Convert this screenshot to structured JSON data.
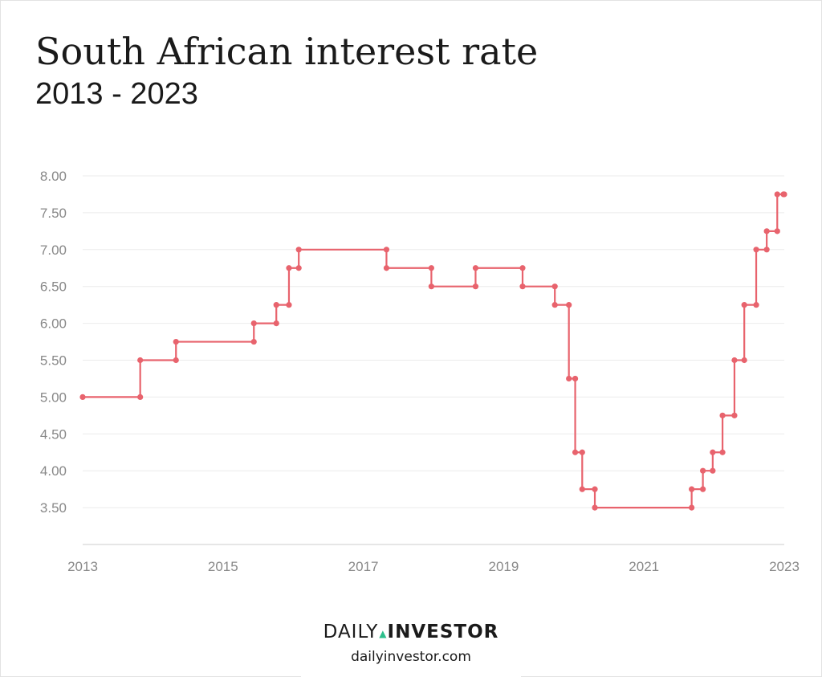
{
  "header": {
    "title": "South African interest rate",
    "subtitle": "2013 - 2023"
  },
  "footer": {
    "brand_part1": "DAILY",
    "brand_separator": "▲",
    "brand_part2": "INVESTOR",
    "website": "dailyinvestor.com",
    "accent_color": "#2dbf8c"
  },
  "chart_data": {
    "type": "line",
    "step": "after",
    "title": "South African interest rate",
    "subtitle": "2013 - 2023",
    "xlabel": "",
    "ylabel": "",
    "xlim": [
      2013,
      2023
    ],
    "ylim": [
      3.0,
      8.0
    ],
    "x_ticks": [
      "2013",
      "2015",
      "2017",
      "2019",
      "2021",
      "2023"
    ],
    "y_ticks": [
      "3.50",
      "4.00",
      "4.50",
      "5.00",
      "5.50",
      "6.00",
      "6.50",
      "7.00",
      "7.50",
      "8.00"
    ],
    "grid": true,
    "legend": "none",
    "line_color": "#e8636d",
    "series": [
      {
        "name": "",
        "x": [
          2013.0,
          2013.82,
          2014.33,
          2015.44,
          2015.76,
          2015.94,
          2016.08,
          2017.33,
          2017.97,
          2018.6,
          2019.27,
          2019.73,
          2019.93,
          2020.02,
          2020.12,
          2020.3,
          2021.68,
          2021.84,
          2021.98,
          2022.12,
          2022.29,
          2022.43,
          2022.6,
          2022.75,
          2022.9,
          2022.99
        ],
        "y": [
          5.0,
          5.5,
          5.75,
          6.0,
          6.25,
          6.75,
          7.0,
          6.75,
          6.5,
          6.75,
          6.5,
          6.25,
          5.25,
          4.25,
          3.75,
          3.5,
          3.75,
          4.0,
          4.25,
          4.75,
          5.5,
          6.25,
          7.0,
          7.25,
          7.75,
          7.75
        ]
      }
    ]
  }
}
